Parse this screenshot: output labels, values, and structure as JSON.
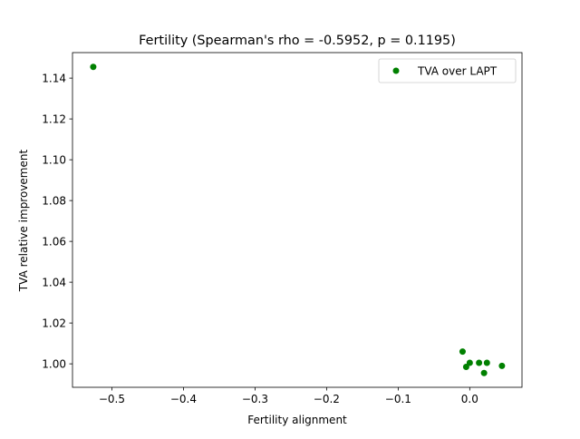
{
  "chart_data": {
    "type": "scatter",
    "title": "Fertility (Spearman's rho = -0.5952, p = 0.1195)",
    "xlabel": "Fertility alignment",
    "ylabel": "TVA relative improvement",
    "xlim": [
      -0.555,
      0.073
    ],
    "ylim": [
      0.9885,
      1.1525
    ],
    "xticks": [
      -0.5,
      -0.4,
      -0.3,
      -0.2,
      -0.1,
      0.0
    ],
    "xtick_labels": [
      "−0.5",
      "−0.4",
      "−0.3",
      "−0.2",
      "−0.1",
      "0.0"
    ],
    "yticks": [
      1.0,
      1.02,
      1.04,
      1.06,
      1.08,
      1.1,
      1.12,
      1.14
    ],
    "ytick_labels": [
      "1.00",
      "1.02",
      "1.04",
      "1.06",
      "1.08",
      "1.10",
      "1.12",
      "1.14"
    ],
    "grid": false,
    "legend_position": "top-right",
    "series": [
      {
        "name": "TVA over LAPT",
        "color": "#008000",
        "x": [
          -0.526,
          -0.01,
          -0.005,
          0.0,
          0.013,
          0.02,
          0.024,
          0.045
        ],
        "y": [
          1.1455,
          1.006,
          0.9985,
          1.0005,
          1.0005,
          0.9955,
          1.0005,
          0.999
        ]
      }
    ]
  }
}
